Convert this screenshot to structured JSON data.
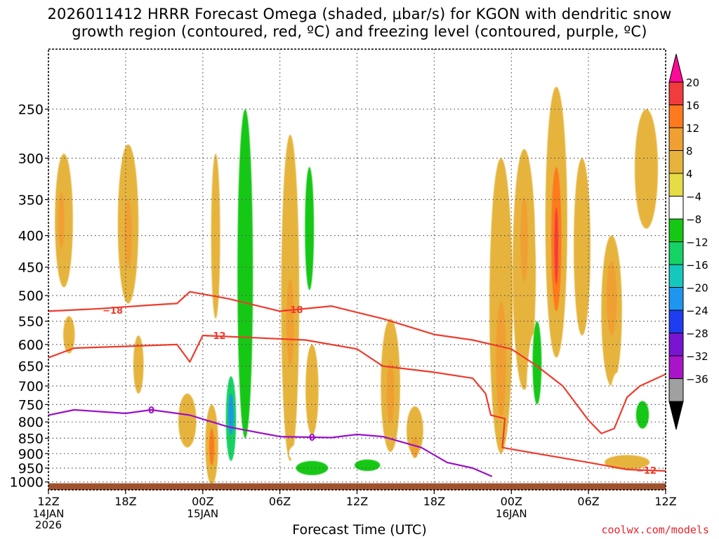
{
  "title_line1": "2026011412 HRRR Forecast Omega (shaded, μbar/s) for KGON with dendritic snow",
  "title_line2": "growth region (contoured, red, ºC) and freezing level (contoured, purple, ºC)",
  "credit": "coolwx.com/models",
  "chart_data": {
    "type": "heatmap",
    "title": "2026011412 HRRR Forecast Omega (shaded, μbar/s) for KGON with dendritic snow growth region (contoured, red, ºC) and freezing level (contoured, purple, ºC)",
    "xlabel": "Forecast Time (UTC)",
    "ylabel": "Pressure (mb)",
    "x_range_hours": [
      0,
      48
    ],
    "y_range_mb": [
      1030,
      200
    ],
    "x_ticks": [
      {
        "hour": 0,
        "label": "12Z",
        "date": "14JAN",
        "year": "2026"
      },
      {
        "hour": 6,
        "label": "18Z",
        "date": "",
        "year": ""
      },
      {
        "hour": 12,
        "label": "00Z",
        "date": "15JAN",
        "year": ""
      },
      {
        "hour": 18,
        "label": "06Z",
        "date": "",
        "year": ""
      },
      {
        "hour": 24,
        "label": "12Z",
        "date": "",
        "year": ""
      },
      {
        "hour": 30,
        "label": "18Z",
        "date": "",
        "year": ""
      },
      {
        "hour": 36,
        "label": "00Z",
        "date": "16JAN",
        "year": ""
      },
      {
        "hour": 42,
        "label": "06Z",
        "date": "",
        "year": ""
      },
      {
        "hour": 48,
        "label": "12Z",
        "date": "",
        "year": ""
      }
    ],
    "y_ticks": [
      250,
      300,
      350,
      400,
      450,
      500,
      550,
      600,
      650,
      700,
      750,
      800,
      850,
      900,
      950,
      1000
    ],
    "surface_pressure_mb": 1005,
    "colorbar": {
      "labels": [
        "20",
        "16",
        "12",
        "8",
        "4",
        "−4",
        "−8",
        "−12",
        "−16",
        "−20",
        "−24",
        "−28",
        "−32",
        "−36"
      ],
      "colors": [
        "#ff0a96",
        "#f03c3c",
        "#ff7a1e",
        "#f0a032",
        "#e6b43c",
        "#e6dc46",
        "#ffffff",
        "#14c814",
        "#14d264",
        "#14c8be",
        "#1e96f0",
        "#1e3cf0",
        "#7814d2",
        "#aa14c8",
        "#a0a0a0",
        "#000000"
      ]
    },
    "omega_cells": [
      {
        "h": 0.8,
        "p": 920,
        "dh": 1.2,
        "dp": 90,
        "v": -6
      },
      {
        "h": 1.2,
        "p": 390,
        "dh": 1.4,
        "dp": 190,
        "v": 6
      },
      {
        "h": 1.0,
        "p": 380,
        "dh": 0.5,
        "dp": 80,
        "v": 10
      },
      {
        "h": 1.6,
        "p": 580,
        "dh": 0.9,
        "dp": 80,
        "v": 5
      },
      {
        "h": 3.0,
        "p": 780,
        "dh": 0.8,
        "dp": 110,
        "v": -6
      },
      {
        "h": 3.4,
        "p": 360,
        "dh": 2.2,
        "dp": 170,
        "v": -6
      },
      {
        "h": 6.2,
        "p": 400,
        "dh": 1.6,
        "dp": 230,
        "v": 6
      },
      {
        "h": 6.2,
        "p": 400,
        "dh": 0.6,
        "dp": 100,
        "v": 10
      },
      {
        "h": 7.0,
        "p": 650,
        "dh": 0.8,
        "dp": 140,
        "v": 5
      },
      {
        "h": 9.3,
        "p": 600,
        "dh": 1.3,
        "dp": 300,
        "v": -6
      },
      {
        "h": 11.0,
        "p": 330,
        "dh": 1.4,
        "dp": 130,
        "v": -6
      },
      {
        "h": 10.8,
        "p": 800,
        "dh": 1.4,
        "dp": 160,
        "v": 6
      },
      {
        "h": 13.3,
        "p": 600,
        "dh": 0.9,
        "dp": 700,
        "v": -6
      },
      {
        "h": 12.7,
        "p": 880,
        "dh": 1.0,
        "dp": 260,
        "v": 6
      },
      {
        "h": 12.7,
        "p": 880,
        "dh": 0.4,
        "dp": 120,
        "v": 12
      },
      {
        "h": 13.0,
        "p": 420,
        "dh": 0.7,
        "dp": 250,
        "v": 5
      },
      {
        "h": 15.3,
        "p": 600,
        "dh": 2.2,
        "dp": 800,
        "v": -7
      },
      {
        "h": 15.3,
        "p": 550,
        "dh": 1.2,
        "dp": 600,
        "v": -11
      },
      {
        "h": 14.2,
        "p": 800,
        "dh": 0.8,
        "dp": 250,
        "v": -14
      },
      {
        "h": 14.2,
        "p": 780,
        "dh": 0.4,
        "dp": 120,
        "v": -22
      },
      {
        "h": 18.0,
        "p": 470,
        "dh": 1.0,
        "dp": 350,
        "v": -6
      },
      {
        "h": 18.8,
        "p": 600,
        "dh": 1.4,
        "dp": 650,
        "v": 6
      },
      {
        "h": 18.8,
        "p": 560,
        "dh": 0.6,
        "dp": 180,
        "v": 10
      },
      {
        "h": 20.8,
        "p": 430,
        "dh": 1.8,
        "dp": 330,
        "v": -6
      },
      {
        "h": 20.3,
        "p": 400,
        "dh": 0.7,
        "dp": 180,
        "v": -10
      },
      {
        "h": 20.7,
        "p": 900,
        "dh": 4.0,
        "dp": 90,
        "v": -8
      },
      {
        "h": 20.5,
        "p": 950,
        "dh": 2.5,
        "dp": 50,
        "v": -12
      },
      {
        "h": 20.5,
        "p": 720,
        "dh": 1.0,
        "dp": 240,
        "v": 5
      },
      {
        "h": 24.8,
        "p": 900,
        "dh": 5.0,
        "dp": 100,
        "v": -7
      },
      {
        "h": 24.8,
        "p": 940,
        "dh": 2.0,
        "dp": 40,
        "v": -12
      },
      {
        "h": 25.5,
        "p": 420,
        "dh": 0.7,
        "dp": 300,
        "v": -6
      },
      {
        "h": 26.6,
        "p": 720,
        "dh": 1.5,
        "dp": 350,
        "v": 6
      },
      {
        "h": 26.6,
        "p": 720,
        "dh": 0.6,
        "dp": 170,
        "v": 10
      },
      {
        "h": 28.8,
        "p": 450,
        "dh": 1.2,
        "dp": 390,
        "v": -6
      },
      {
        "h": 28.5,
        "p": 830,
        "dh": 1.3,
        "dp": 150,
        "v": 6
      },
      {
        "h": 28.5,
        "p": 880,
        "dh": 0.6,
        "dp": 70,
        "v": 10
      },
      {
        "h": 30.8,
        "p": 420,
        "dh": 1.2,
        "dp": 300,
        "v": -6
      },
      {
        "h": 33.5,
        "p": 470,
        "dh": 1.2,
        "dp": 350,
        "v": -6
      },
      {
        "h": 35.2,
        "p": 600,
        "dh": 1.8,
        "dp": 600,
        "v": 6
      },
      {
        "h": 35.2,
        "p": 650,
        "dh": 0.8,
        "dp": 280,
        "v": 10
      },
      {
        "h": 37.0,
        "p": 500,
        "dh": 1.8,
        "dp": 420,
        "v": 6
      },
      {
        "h": 37.0,
        "p": 410,
        "dh": 0.6,
        "dp": 130,
        "v": 10
      },
      {
        "h": 36.8,
        "p": 880,
        "dh": 1.2,
        "dp": 220,
        "v": -6
      },
      {
        "h": 37.8,
        "p": 800,
        "dh": 1.3,
        "dp": 450,
        "v": -7
      },
      {
        "h": 38.0,
        "p": 650,
        "dh": 0.7,
        "dp": 200,
        "v": -12
      },
      {
        "h": 38.6,
        "p": 400,
        "dh": 1.5,
        "dp": 200,
        "v": -6
      },
      {
        "h": 39.5,
        "p": 430,
        "dh": 1.7,
        "dp": 400,
        "v": 6
      },
      {
        "h": 39.5,
        "p": 420,
        "dh": 0.8,
        "dp": 220,
        "v": 12
      },
      {
        "h": 39.5,
        "p": 420,
        "dh": 0.3,
        "dp": 120,
        "v": 16
      },
      {
        "h": 41.5,
        "p": 440,
        "dh": 1.3,
        "dp": 280,
        "v": 6
      },
      {
        "h": 43.8,
        "p": 550,
        "dh": 1.6,
        "dp": 300,
        "v": 6
      },
      {
        "h": 43.8,
        "p": 510,
        "dh": 0.8,
        "dp": 140,
        "v": 10
      },
      {
        "h": 46.5,
        "p": 320,
        "dh": 1.8,
        "dp": 140,
        "v": 6
      },
      {
        "h": 44.3,
        "p": 760,
        "dh": 1.3,
        "dp": 190,
        "v": -6
      },
      {
        "h": 46.2,
        "p": 790,
        "dh": 2.5,
        "dp": 190,
        "v": -7
      },
      {
        "h": 46.2,
        "p": 780,
        "dh": 1.0,
        "dp": 80,
        "v": -12
      },
      {
        "h": 45.0,
        "p": 930,
        "dh": 3.5,
        "dp": 50,
        "v": 6
      }
    ],
    "contour_dgz_minus18": {
      "label": "−18",
      "points": [
        [
          0,
          530
        ],
        [
          4,
          525
        ],
        [
          8,
          518
        ],
        [
          10,
          515
        ],
        [
          11,
          493
        ],
        [
          14,
          506
        ],
        [
          18,
          530
        ],
        [
          22,
          520
        ],
        [
          26,
          545
        ],
        [
          30,
          578
        ],
        [
          33,
          590
        ],
        [
          36,
          610
        ],
        [
          38,
          650
        ],
        [
          40,
          700
        ],
        [
          42,
          795
        ],
        [
          43,
          835
        ],
        [
          44,
          820
        ],
        [
          45,
          730
        ],
        [
          46,
          700
        ],
        [
          48,
          670
        ]
      ],
      "label_positions": [
        [
          5,
          528
        ],
        [
          19,
          527
        ]
      ]
    },
    "contour_dgz_minus12": {
      "label": "−12",
      "points": [
        [
          0,
          630
        ],
        [
          2,
          608
        ],
        [
          6,
          604
        ],
        [
          10,
          600
        ],
        [
          11,
          640
        ],
        [
          12,
          580
        ],
        [
          16,
          585
        ],
        [
          20,
          590
        ],
        [
          24,
          610
        ],
        [
          26,
          650
        ],
        [
          30,
          665
        ],
        [
          33,
          680
        ],
        [
          34,
          720
        ],
        [
          34.4,
          780
        ],
        [
          35.5,
          790
        ],
        [
          35.3,
          880
        ],
        [
          38,
          900
        ],
        [
          42,
          930
        ],
        [
          45,
          955
        ],
        [
          48,
          960
        ]
      ],
      "label_positions": [
        [
          13,
          580
        ],
        [
          46.5,
          957
        ]
      ]
    },
    "contour_freezing_0": {
      "label": "0",
      "points": [
        [
          0,
          780
        ],
        [
          2,
          765
        ],
        [
          4,
          770
        ],
        [
          6,
          775
        ],
        [
          8,
          765
        ],
        [
          11,
          780
        ],
        [
          14,
          815
        ],
        [
          18,
          845
        ],
        [
          22,
          848
        ],
        [
          24,
          838
        ],
        [
          26,
          845
        ],
        [
          29,
          880
        ],
        [
          31,
          930
        ],
        [
          33,
          950
        ],
        [
          34.5,
          980
        ]
      ],
      "label_positions": [
        [
          8,
          765
        ],
        [
          20.5,
          847
        ]
      ]
    }
  }
}
